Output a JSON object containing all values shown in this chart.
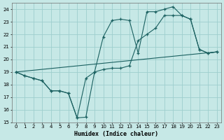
{
  "bg_color": "#c6e8e6",
  "grid_color": "#9ecece",
  "line_color": "#1a6060",
  "xlabel": "Humidex (Indice chaleur)",
  "xlim": [
    -0.5,
    23.5
  ],
  "ylim": [
    15,
    24.5
  ],
  "yticks": [
    15,
    16,
    17,
    18,
    19,
    20,
    21,
    22,
    23,
    24
  ],
  "xticks": [
    0,
    1,
    2,
    3,
    4,
    5,
    6,
    7,
    8,
    9,
    10,
    11,
    12,
    13,
    14,
    15,
    16,
    17,
    18,
    19,
    20,
    21,
    22,
    23
  ],
  "line1_x": [
    0,
    1,
    2,
    3,
    4,
    5,
    6,
    7,
    8,
    9,
    10,
    11,
    12,
    13,
    14,
    15,
    16,
    17,
    18,
    19,
    20,
    21,
    22,
    23
  ],
  "line1_y": [
    19.0,
    18.7,
    18.5,
    18.3,
    17.5,
    17.5,
    17.3,
    15.35,
    15.4,
    19.0,
    21.8,
    23.1,
    23.2,
    23.1,
    20.5,
    23.8,
    23.8,
    24.0,
    24.2,
    23.5,
    23.2,
    20.8,
    20.5,
    20.6
  ],
  "line2_x": [
    0,
    1,
    2,
    3,
    4,
    5,
    6,
    7,
    8,
    9,
    10,
    11,
    12,
    13,
    14,
    15,
    16,
    17,
    18,
    19,
    20,
    21,
    22,
    23
  ],
  "line2_y": [
    19.0,
    18.7,
    18.5,
    18.3,
    17.5,
    17.5,
    17.3,
    15.35,
    18.5,
    19.0,
    19.2,
    19.3,
    19.3,
    19.5,
    21.5,
    22.0,
    22.5,
    23.5,
    23.5,
    23.5,
    23.2,
    20.8,
    20.5,
    20.6
  ],
  "line3_x": [
    0,
    23
  ],
  "line3_y": [
    19.0,
    20.6
  ]
}
